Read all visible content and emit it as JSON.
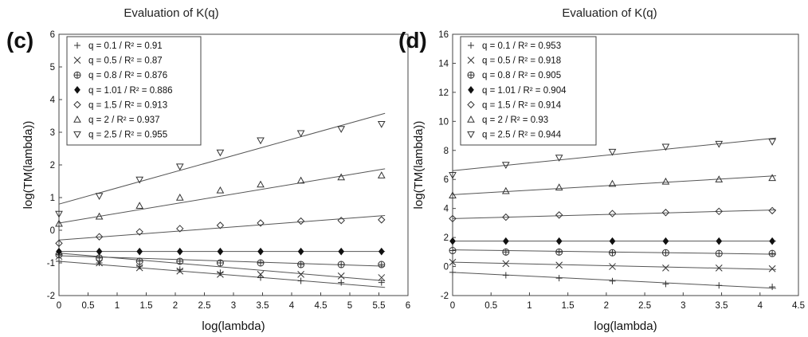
{
  "chart_data": [
    {
      "type": "scatter",
      "panel_label": "(c)",
      "title": "Evaluation of K(q)",
      "xlabel": "log(lambda)",
      "ylabel": "log(TM(lambda))",
      "xlim": [
        0,
        6
      ],
      "ylim": [
        -2,
        6
      ],
      "xticks": [
        "0",
        "0.5",
        "1",
        "1.5",
        "2",
        "2.5",
        "3",
        "3.5",
        "4",
        "4.5",
        "5",
        "5.5",
        "6"
      ],
      "yticks": [
        "-2",
        "-1",
        "0",
        "1",
        "2",
        "3",
        "4",
        "5",
        "6"
      ],
      "legend_position": "top-left",
      "x": [
        0,
        0.693,
        1.386,
        2.079,
        2.773,
        3.466,
        4.159,
        4.852,
        5.545
      ],
      "series": [
        {
          "name": "q = 0.1 / R² = 0.91",
          "marker": "plus",
          "values": [
            -0.95,
            -1.0,
            -1.1,
            -1.2,
            -1.3,
            -1.45,
            -1.55,
            -1.6,
            -1.6
          ],
          "fit": [
            -0.95,
            -1.75
          ]
        },
        {
          "name": "q = 0.5 / R² = 0.87",
          "marker": "x",
          "values": [
            -0.8,
            -1.0,
            -1.15,
            -1.25,
            -1.35,
            -1.35,
            -1.35,
            -1.4,
            -1.45
          ],
          "fit": [
            -0.7,
            -1.55
          ]
        },
        {
          "name": "q = 0.8 / R² = 0.876",
          "marker": "circleplus",
          "values": [
            -0.75,
            -0.85,
            -0.95,
            -0.95,
            -1.0,
            -1.0,
            -1.05,
            -1.05,
            -1.05
          ],
          "fit": [
            -0.78,
            -1.1
          ]
        },
        {
          "name": "q = 1.01 / R² = 0.886",
          "marker": "diamondfilled",
          "values": [
            -0.65,
            -0.65,
            -0.65,
            -0.65,
            -0.65,
            -0.65,
            -0.65,
            -0.65,
            -0.65
          ],
          "fit": [
            -0.65,
            -0.65
          ]
        },
        {
          "name": "q = 1.5 / R² = 0.913",
          "marker": "diamond",
          "values": [
            -0.4,
            -0.2,
            -0.05,
            0.05,
            0.15,
            0.22,
            0.28,
            0.3,
            0.32
          ],
          "fit": [
            -0.3,
            0.45
          ]
        },
        {
          "name": "q = 2 / R² = 0.937",
          "marker": "triangle",
          "values": [
            0.2,
            0.42,
            0.75,
            1.0,
            1.22,
            1.4,
            1.52,
            1.62,
            1.68
          ],
          "fit": [
            0.22,
            1.88
          ]
        },
        {
          "name": "q = 2.5 / R² = 0.955",
          "marker": "triangledown",
          "values": [
            0.5,
            1.05,
            1.55,
            1.95,
            2.38,
            2.75,
            2.97,
            3.1,
            3.25
          ],
          "fit": [
            0.8,
            3.58
          ]
        }
      ]
    },
    {
      "type": "scatter",
      "panel_label": "(d)",
      "title": "Evaluation of K(q)",
      "xlabel": "log(lambda)",
      "ylabel": "log(TM(lambda))",
      "xlim": [
        0,
        4.5
      ],
      "ylim": [
        -2,
        16
      ],
      "xticks": [
        "0",
        "0.5",
        "1",
        "1.5",
        "2",
        "2.5",
        "3",
        "3.5",
        "4",
        "4.5"
      ],
      "yticks": [
        "-2",
        "0",
        "2",
        "4",
        "6",
        "8",
        "10",
        "12",
        "14",
        "16"
      ],
      "legend_position": "top-left",
      "x": [
        0,
        0.693,
        1.386,
        2.079,
        2.773,
        3.466,
        4.159
      ],
      "series": [
        {
          "name": "q = 0.1 / R² = 0.953",
          "marker": "plus",
          "values": [
            -0.4,
            -0.6,
            -0.8,
            -1.0,
            -1.2,
            -1.3,
            -1.4
          ],
          "fit": [
            -0.4,
            -1.5
          ]
        },
        {
          "name": "q = 0.5 / R² = 0.918",
          "marker": "x",
          "values": [
            0.3,
            0.2,
            0.1,
            0.0,
            -0.1,
            -0.1,
            -0.15
          ],
          "fit": [
            0.3,
            -0.2
          ]
        },
        {
          "name": "q = 0.8 / R² = 0.905",
          "marker": "circleplus",
          "values": [
            1.1,
            1.0,
            1.0,
            0.95,
            0.95,
            0.9,
            0.9
          ],
          "fit": [
            1.15,
            0.85
          ]
        },
        {
          "name": "q = 1.01 / R² = 0.904",
          "marker": "diamondfilled",
          "values": [
            1.75,
            1.75,
            1.75,
            1.75,
            1.75,
            1.75,
            1.75
          ],
          "fit": [
            1.75,
            1.75
          ]
        },
        {
          "name": "q = 1.5 / R² = 0.914",
          "marker": "diamond",
          "values": [
            3.3,
            3.4,
            3.55,
            3.65,
            3.72,
            3.8,
            3.85
          ],
          "fit": [
            3.3,
            3.9
          ]
        },
        {
          "name": "q = 2 / R² = 0.93",
          "marker": "triangle",
          "values": [
            4.9,
            5.2,
            5.45,
            5.7,
            5.85,
            6.0,
            6.1
          ],
          "fit": [
            4.95,
            6.25
          ]
        },
        {
          "name": "q = 2.5 / R² = 0.944",
          "marker": "triangledown",
          "values": [
            6.3,
            7.0,
            7.5,
            7.9,
            8.25,
            8.45,
            8.6
          ],
          "fit": [
            6.6,
            8.85
          ]
        }
      ]
    }
  ]
}
